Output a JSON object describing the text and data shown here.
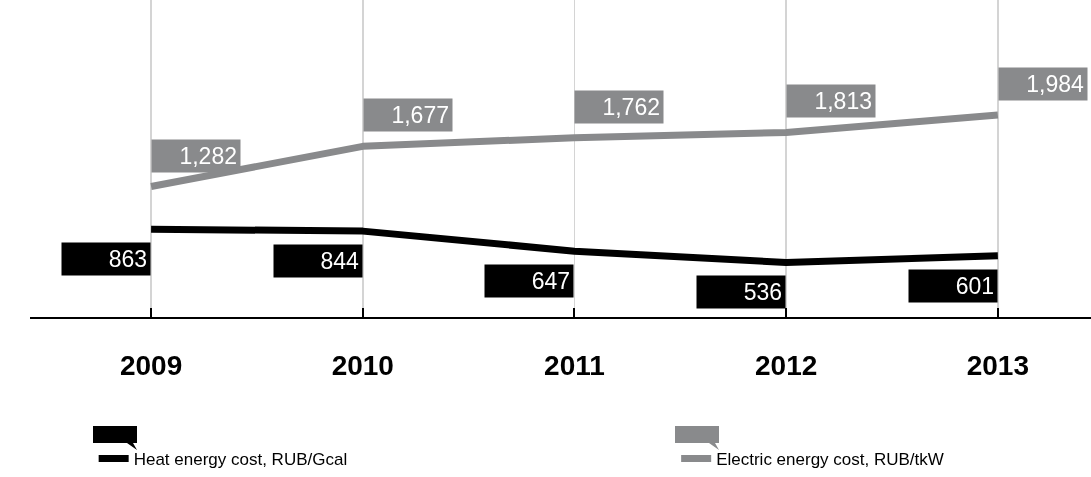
{
  "chart_data": {
    "type": "line",
    "categories": [
      "2009",
      "2010",
      "2011",
      "2012",
      "2013"
    ],
    "series": [
      {
        "name": "Heat energy cost, RUB/Gcal",
        "color": "#000000",
        "values": [
          863,
          844,
          647,
          536,
          601
        ],
        "value_labels": [
          "863",
          "844",
          "647",
          "536",
          "601"
        ]
      },
      {
        "name": "Electric energy cost, RUB/tkW",
        "color": "#898a8c",
        "values": [
          1282,
          1677,
          1762,
          1813,
          1984
        ],
        "value_labels": [
          "1,282",
          "1,677",
          "1,762",
          "1,813",
          "1,984"
        ]
      }
    ],
    "grid": "x",
    "legend": "bottom",
    "tick_labels": "x"
  }
}
